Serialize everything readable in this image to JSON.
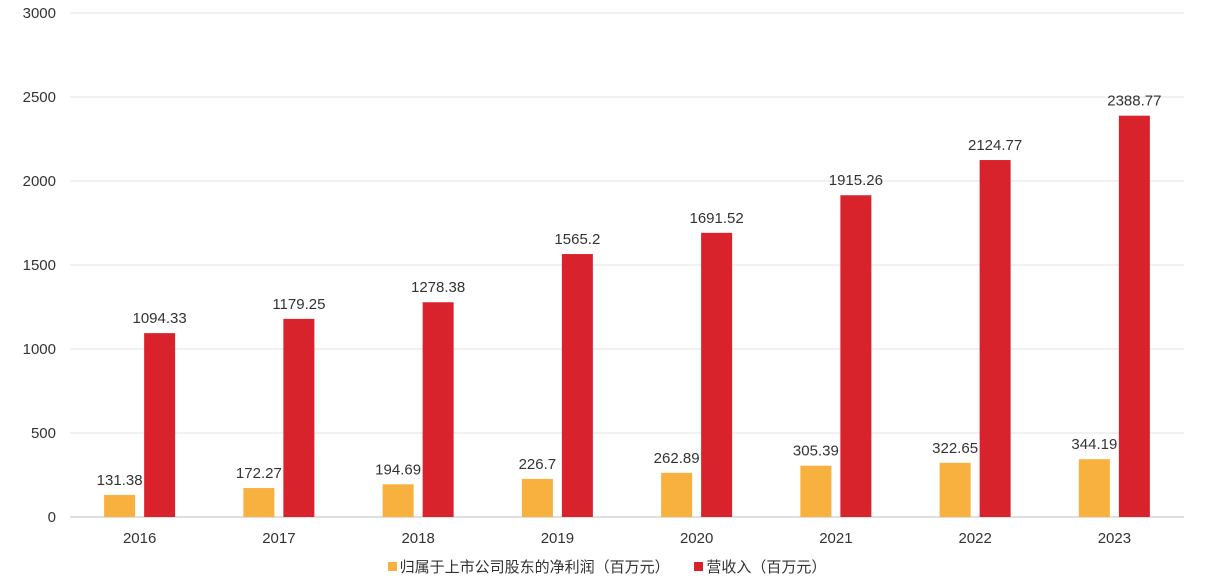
{
  "chart_data": {
    "type": "bar",
    "categories": [
      "2016",
      "2017",
      "2018",
      "2019",
      "2020",
      "2021",
      "2022",
      "2023"
    ],
    "series": [
      {
        "name": "归属于上市公司股东的净利润（百万元）",
        "color": "#F8B03F",
        "values": [
          131.38,
          172.27,
          194.69,
          226.7,
          262.89,
          305.39,
          322.65,
          344.19
        ],
        "labels": [
          "131.38",
          "172.27",
          "194.69",
          "226.7",
          "262.89",
          "305.39",
          "322.65",
          "344.19"
        ]
      },
      {
        "name": "营收入（百万元）",
        "color": "#D9232C",
        "values": [
          1094.33,
          1179.25,
          1278.38,
          1565.2,
          1691.52,
          1915.26,
          2124.77,
          2388.77
        ],
        "labels": [
          "1094.33",
          "1179.25",
          "1278.38",
          "1565.2",
          "1691.52",
          "1915.26",
          "2124.77",
          "2388.77"
        ]
      }
    ],
    "ylim": [
      0,
      3000
    ],
    "yticks": [
      "0",
      "500",
      "1000",
      "1500",
      "2000",
      "2500",
      "3000"
    ],
    "grid": true,
    "legend_position": "bottom"
  }
}
